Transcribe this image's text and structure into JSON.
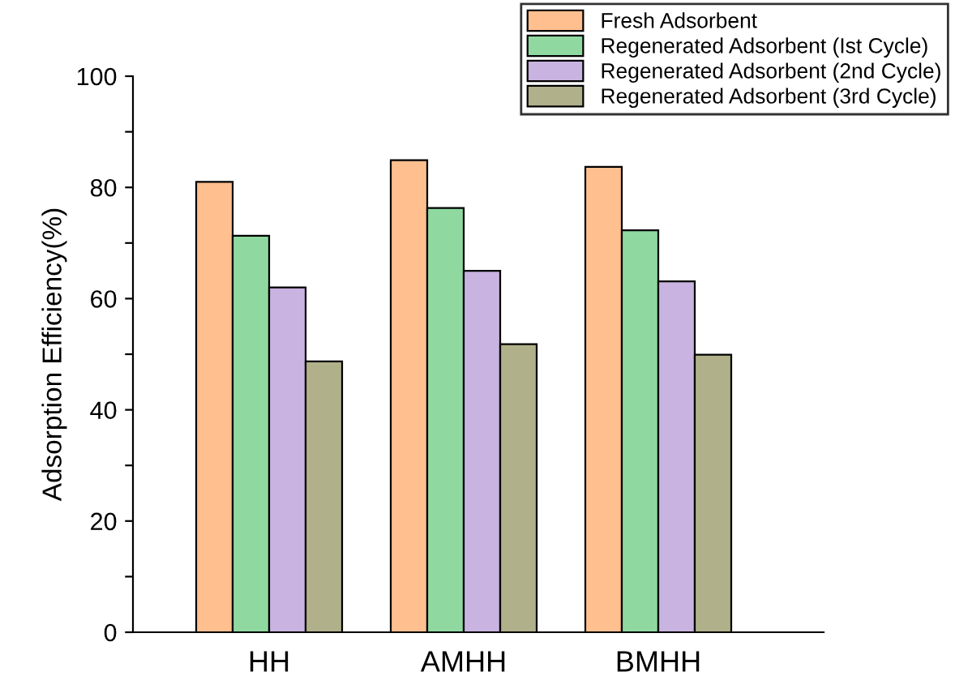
{
  "chart_data": {
    "type": "bar",
    "ylabel": "Adsorption Efficiency(%)",
    "categories": [
      "HH",
      "AMHH",
      "BMHH"
    ],
    "series": [
      {
        "name": "Fresh Adsorbent",
        "color": "#ffbf8f",
        "values": [
          81,
          84.9,
          83.7
        ]
      },
      {
        "name": "Regenerated Adsorbent (Ist Cycle)",
        "color": "#8fd9a0",
        "values": [
          71.3,
          76.3,
          72.3
        ]
      },
      {
        "name": "Regenerated Adsorbent (2nd Cycle)",
        "color": "#c9b3e0",
        "values": [
          62.0,
          65.0,
          63.1
        ]
      },
      {
        "name": "Regenerated Adsorbent (3rd Cycle)",
        "color": "#b0b08a",
        "values": [
          48.7,
          51.8,
          49.9
        ]
      }
    ],
    "ylim": [
      0,
      100
    ],
    "yticks": [
      0,
      {
        "value": 10,
        "label": null
      },
      20,
      {
        "value": 30,
        "label": null
      },
      40,
      {
        "value": 50,
        "label": null
      },
      60,
      {
        "value": 70,
        "label": null
      },
      80,
      {
        "value": 90,
        "label": null
      },
      100
    ],
    "grid": false,
    "legend": "top right"
  }
}
